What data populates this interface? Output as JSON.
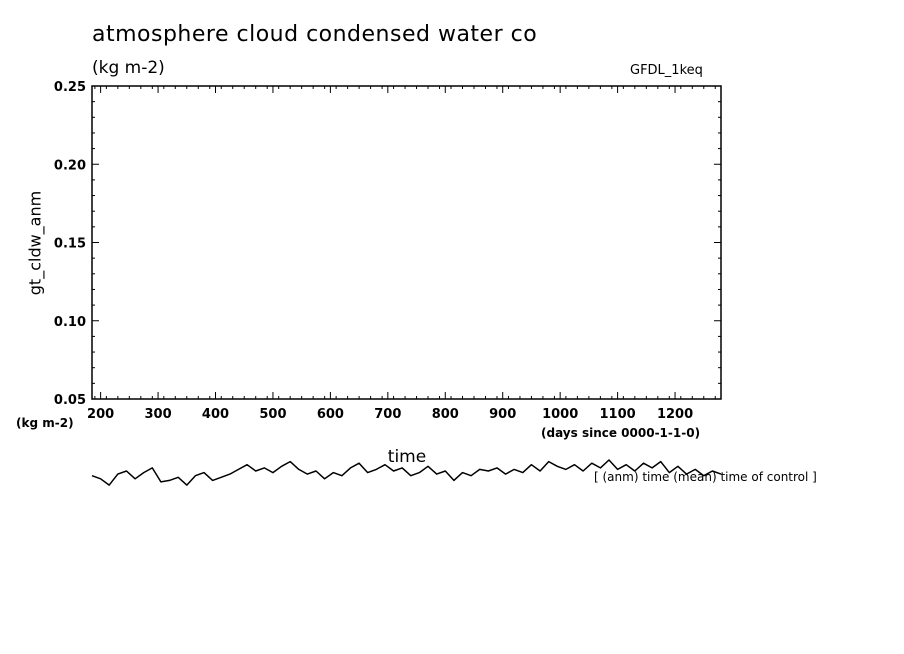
{
  "header": {
    "title": "atmosphere cloud condensed water co",
    "unit": "(kg m-2)",
    "model": "GFDL_1keq"
  },
  "footer": {
    "note": "[ (anm) time (mean) time of control ]"
  },
  "chart_data": {
    "type": "line",
    "title": "atmosphere cloud condensed water co",
    "ylabel": "gt_cldw_anm",
    "yunit": "(kg m-2)",
    "xlabel": "time",
    "xunit": "(days since 0000-1-1-0)",
    "xlim": [
      185,
      1280
    ],
    "ylim": [
      0.05,
      0.25
    ],
    "x_ticks": [
      200,
      300,
      400,
      500,
      600,
      700,
      800,
      900,
      1000,
      1100,
      1200
    ],
    "x_tick_labels": [
      "200",
      "300",
      "400",
      "500",
      "600",
      "700",
      "800",
      "900",
      "1000",
      "1100",
      "1200"
    ],
    "y_ticks": [
      0.05,
      0.1,
      0.15,
      0.2,
      0.25
    ],
    "y_tick_labels": [
      "0.05",
      "0.10",
      "0.15",
      "0.20",
      "0.25"
    ],
    "grid": false,
    "line_color": "#000000",
    "series": [
      {
        "x": [
          185,
          200,
          215,
          230,
          245,
          260,
          275,
          290,
          305,
          320,
          335,
          350,
          365,
          380,
          395,
          410,
          425,
          440,
          455,
          470,
          485,
          500,
          515,
          530,
          545,
          560,
          575,
          590,
          605,
          620,
          635,
          650,
          665,
          680,
          695,
          710,
          725,
          740,
          755,
          770,
          785,
          800,
          815,
          830,
          845,
          860,
          875,
          890,
          905,
          920,
          935,
          950,
          965,
          980,
          995,
          1010,
          1025,
          1040,
          1055,
          1070,
          1085,
          1100,
          1115,
          1130,
          1145,
          1160,
          1175,
          1190,
          1205,
          1220,
          1235,
          1250,
          1265,
          1280
        ],
        "y": [
          0.001,
          -0.001,
          -0.005,
          0.002,
          0.004,
          -0.001,
          0.003,
          0.006,
          -0.003,
          -0.002,
          0.0,
          -0.005,
          0.001,
          0.003,
          -0.002,
          0.0,
          0.002,
          0.005,
          0.008,
          0.004,
          0.006,
          0.003,
          0.007,
          0.01,
          0.005,
          0.002,
          0.004,
          -0.001,
          0.003,
          0.001,
          0.006,
          0.009,
          0.003,
          0.005,
          0.008,
          0.004,
          0.006,
          0.001,
          0.003,
          0.007,
          0.002,
          0.004,
          -0.002,
          0.003,
          0.001,
          0.005,
          0.004,
          0.006,
          0.002,
          0.005,
          0.003,
          0.008,
          0.004,
          0.01,
          0.007,
          0.005,
          0.008,
          0.004,
          0.009,
          0.006,
          0.011,
          0.005,
          0.008,
          0.004,
          0.009,
          0.006,
          0.01,
          0.003,
          0.007,
          0.002,
          0.005,
          0.001,
          0.004,
          0.002
        ]
      }
    ]
  }
}
